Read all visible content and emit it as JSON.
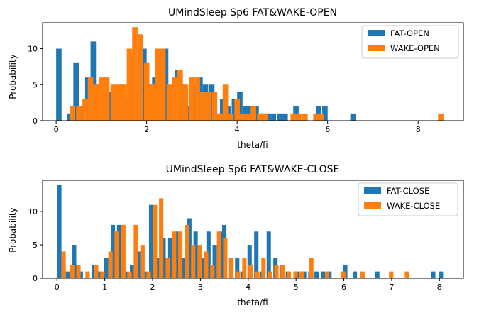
{
  "chart_data": [
    {
      "type": "bar",
      "title": "UMindSleep Sp6 FAT&WAKE-OPEN",
      "xlabel": "theta/fi",
      "ylabel": "Probability",
      "xlim": [
        -0.3,
        9.0
      ],
      "ylim": [
        0,
        13.6
      ],
      "xticks": [
        "0",
        "2",
        "4",
        "6",
        "8"
      ],
      "yticks": [
        "0",
        "5",
        "10"
      ],
      "legend_position": "top-right",
      "bin_width": 0.12,
      "series": [
        {
          "name": "FAT-OPEN",
          "color": "#1f77b4",
          "points": [
            [
              0.06,
              10
            ],
            [
              0.3,
              1
            ],
            [
              0.44,
              8
            ],
            [
              0.58,
              2
            ],
            [
              0.7,
              6
            ],
            [
              0.82,
              11
            ],
            [
              0.94,
              5
            ],
            [
              1.06,
              4
            ],
            [
              1.18,
              4
            ],
            [
              1.32,
              4
            ],
            [
              1.44,
              5
            ],
            [
              1.56,
              3
            ],
            [
              1.68,
              9
            ],
            [
              1.8,
              4
            ],
            [
              1.94,
              10
            ],
            [
              2.06,
              5
            ],
            [
              2.18,
              6
            ],
            [
              2.3,
              8
            ],
            [
              2.42,
              10
            ],
            [
              2.56,
              2
            ],
            [
              2.68,
              7
            ],
            [
              2.8,
              5
            ],
            [
              2.94,
              2
            ],
            [
              3.06,
              5
            ],
            [
              3.18,
              6
            ],
            [
              3.3,
              5
            ],
            [
              3.44,
              5
            ],
            [
              3.56,
              1
            ],
            [
              3.68,
              3
            ],
            [
              3.8,
              2
            ],
            [
              3.94,
              3
            ],
            [
              4.06,
              4
            ],
            [
              4.18,
              2
            ],
            [
              4.3,
              2
            ],
            [
              4.42,
              2
            ],
            [
              4.56,
              1
            ],
            [
              4.68,
              1
            ],
            [
              4.8,
              1
            ],
            [
              4.94,
              1
            ],
            [
              5.06,
              1
            ],
            [
              5.3,
              2
            ],
            [
              5.8,
              2
            ],
            [
              5.94,
              2
            ],
            [
              6.56,
              1
            ]
          ]
        },
        {
          "name": "WAKE-OPEN",
          "color": "#ff7f0e",
          "points": [
            [
              0.36,
              2
            ],
            [
              0.5,
              2
            ],
            [
              0.64,
              3
            ],
            [
              0.76,
              6
            ],
            [
              0.88,
              5
            ],
            [
              1.0,
              6
            ],
            [
              1.12,
              6
            ],
            [
              1.26,
              5
            ],
            [
              1.38,
              5
            ],
            [
              1.5,
              5
            ],
            [
              1.62,
              10
            ],
            [
              1.74,
              13
            ],
            [
              1.86,
              12
            ],
            [
              2.0,
              8
            ],
            [
              2.12,
              5
            ],
            [
              2.24,
              10
            ],
            [
              2.36,
              10
            ],
            [
              2.5,
              5
            ],
            [
              2.62,
              6
            ],
            [
              2.74,
              7
            ],
            [
              2.86,
              5
            ],
            [
              3.0,
              6
            ],
            [
              3.12,
              6
            ],
            [
              3.24,
              4
            ],
            [
              3.36,
              4
            ],
            [
              3.5,
              4
            ],
            [
              3.62,
              1
            ],
            [
              3.74,
              5
            ],
            [
              3.86,
              1
            ],
            [
              4.0,
              3
            ],
            [
              4.12,
              1
            ],
            [
              4.24,
              1
            ],
            [
              4.36,
              2
            ],
            [
              4.5,
              1
            ],
            [
              4.62,
              1
            ],
            [
              5.24,
              1
            ],
            [
              5.36,
              1
            ],
            [
              5.5,
              1
            ],
            [
              5.74,
              1
            ],
            [
              5.86,
              1
            ],
            [
              8.5,
              1
            ]
          ]
        }
      ]
    },
    {
      "type": "bar",
      "title": "UMindSleep Sp6 FAT&WAKE-CLOSE",
      "xlabel": "theta/fi",
      "ylabel": "Probability",
      "xlim": [
        -0.3,
        8.5
      ],
      "ylim": [
        0,
        14.7
      ],
      "xticks": [
        "0",
        "1",
        "2",
        "3",
        "4",
        "5",
        "6",
        "7",
        "8"
      ],
      "yticks": [
        "0",
        "5",
        "10"
      ],
      "legend_position": "top-right",
      "bin_width": 0.09,
      "series": [
        {
          "name": "FAT-CLOSE",
          "color": "#1f77b4",
          "points": [
            [
              0.05,
              14
            ],
            [
              0.23,
              1
            ],
            [
              0.36,
              5
            ],
            [
              0.5,
              1
            ],
            [
              0.77,
              2
            ],
            [
              0.9,
              1
            ],
            [
              1.03,
              3
            ],
            [
              1.17,
              8
            ],
            [
              1.3,
              8
            ],
            [
              1.43,
              1
            ],
            [
              1.57,
              2
            ],
            [
              1.7,
              4
            ],
            [
              1.83,
              1
            ],
            [
              1.97,
              11
            ],
            [
              2.1,
              3
            ],
            [
              2.23,
              6
            ],
            [
              2.37,
              6
            ],
            [
              2.5,
              7
            ],
            [
              2.63,
              3
            ],
            [
              2.77,
              9
            ],
            [
              2.9,
              7
            ],
            [
              3.03,
              3
            ],
            [
              3.17,
              7
            ],
            [
              3.3,
              5
            ],
            [
              3.43,
              7
            ],
            [
              3.5,
              8
            ],
            [
              3.63,
              3
            ],
            [
              3.77,
              3
            ],
            [
              3.9,
              1
            ],
            [
              4.03,
              5
            ],
            [
              4.17,
              7
            ],
            [
              4.3,
              1
            ],
            [
              4.43,
              7
            ],
            [
              4.57,
              3
            ],
            [
              4.7,
              2
            ],
            [
              4.83,
              1
            ],
            [
              5.03,
              1
            ],
            [
              5.17,
              1
            ],
            [
              5.3,
              1
            ],
            [
              5.43,
              1
            ],
            [
              5.57,
              1
            ],
            [
              5.7,
              1
            ],
            [
              6.03,
              2
            ],
            [
              6.23,
              1
            ],
            [
              6.7,
              1
            ],
            [
              7.87,
              1
            ],
            [
              8.03,
              1
            ]
          ]
        },
        {
          "name": "WAKE-CLOSE",
          "color": "#ff7f0e",
          "points": [
            [
              0.14,
              4
            ],
            [
              0.32,
              2
            ],
            [
              0.45,
              2
            ],
            [
              0.64,
              1
            ],
            [
              0.82,
              2
            ],
            [
              0.95,
              1
            ],
            [
              1.12,
              4
            ],
            [
              1.25,
              7
            ],
            [
              1.39,
              8
            ],
            [
              1.52,
              1
            ],
            [
              1.65,
              8
            ],
            [
              1.79,
              5
            ],
            [
              1.92,
              1
            ],
            [
              2.05,
              11
            ],
            [
              2.18,
              12
            ],
            [
              2.32,
              3
            ],
            [
              2.45,
              7
            ],
            [
              2.58,
              7
            ],
            [
              2.72,
              8
            ],
            [
              2.85,
              5
            ],
            [
              2.99,
              5
            ],
            [
              3.12,
              4
            ],
            [
              3.25,
              2
            ],
            [
              3.39,
              7
            ],
            [
              3.52,
              6
            ],
            [
              3.65,
              3
            ],
            [
              3.79,
              1
            ],
            [
              3.92,
              3
            ],
            [
              4.05,
              2
            ],
            [
              4.19,
              1
            ],
            [
              4.32,
              3
            ],
            [
              4.45,
              1
            ],
            [
              4.59,
              2
            ],
            [
              4.72,
              2
            ],
            [
              4.85,
              1
            ],
            [
              4.99,
              1
            ],
            [
              5.12,
              1
            ],
            [
              5.32,
              3
            ],
            [
              5.65,
              1
            ],
            [
              5.99,
              1
            ],
            [
              6.39,
              1
            ],
            [
              6.99,
              1
            ],
            [
              7.32,
              1
            ]
          ]
        }
      ]
    }
  ]
}
